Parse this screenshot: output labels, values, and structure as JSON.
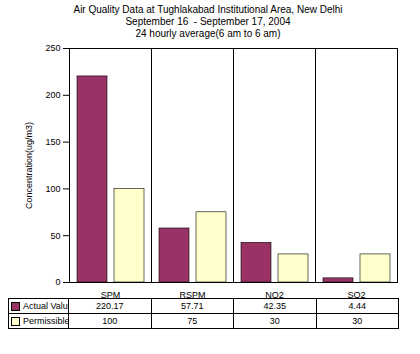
{
  "chart_data": {
    "type": "bar",
    "title": "Air Quality Data at Tughlakabad Institutional Area, New Delhi",
    "subtitle": [
      "September 16  - September 17, 2004",
      "24 hourly average(6 am to 6 am)"
    ],
    "y_label": "Concentration(ug/m3)",
    "categories": [
      "SPM",
      "RSPM",
      "NO2",
      "SO2"
    ],
    "series": [
      {
        "name": "Actual Value",
        "color": "#993366",
        "values": [
          220.17,
          57.71,
          42.35,
          4.44
        ]
      },
      {
        "name": "Permissible Limit",
        "color": "#ffffcc",
        "values": [
          100,
          75,
          30,
          30
        ]
      }
    ],
    "ylim": [
      0,
      250
    ],
    "yticks": [
      0,
      50,
      100,
      150,
      200,
      250
    ],
    "grid": false,
    "data_labels": true
  }
}
